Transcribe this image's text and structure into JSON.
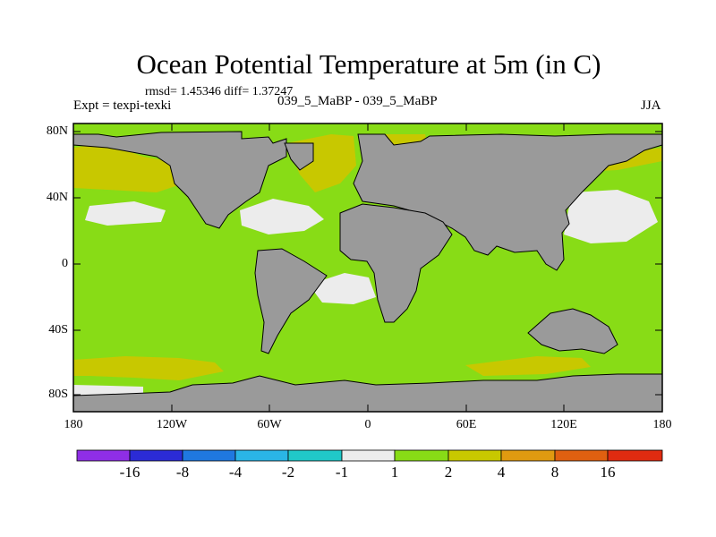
{
  "title": "Ocean Potential Temperature at 5m (in C)",
  "stats": "rmsd= 1.45346 diff= 1.37247",
  "experiment": "Expt = texpi-texki",
  "runs": "039_5_MaBP - 039_5_MaBP",
  "season": "JJA",
  "lat_labels": [
    "80N",
    "40N",
    "0",
    "40S",
    "80S"
  ],
  "lon_labels": [
    "180",
    "120W",
    "60W",
    "0",
    "60E",
    "120E",
    "180"
  ],
  "colorbar": {
    "colors": [
      "#8f2ee6",
      "#2b2bd6",
      "#1f78e0",
      "#2ab5e6",
      "#20c8c8",
      "#ececec",
      "#88dc16",
      "#c8c800",
      "#e09a10",
      "#e06010",
      "#e02b10"
    ],
    "labels": [
      "-16",
      "-8",
      "-4",
      "-2",
      "-1",
      "1",
      "2",
      "4",
      "8",
      "16"
    ]
  },
  "colors": {
    "land": "#9a9a9a",
    "ocean_1_2": "#88dc16",
    "ocean_2_4": "#c8c800",
    "ocean_neg1_1": "#ececec"
  }
}
